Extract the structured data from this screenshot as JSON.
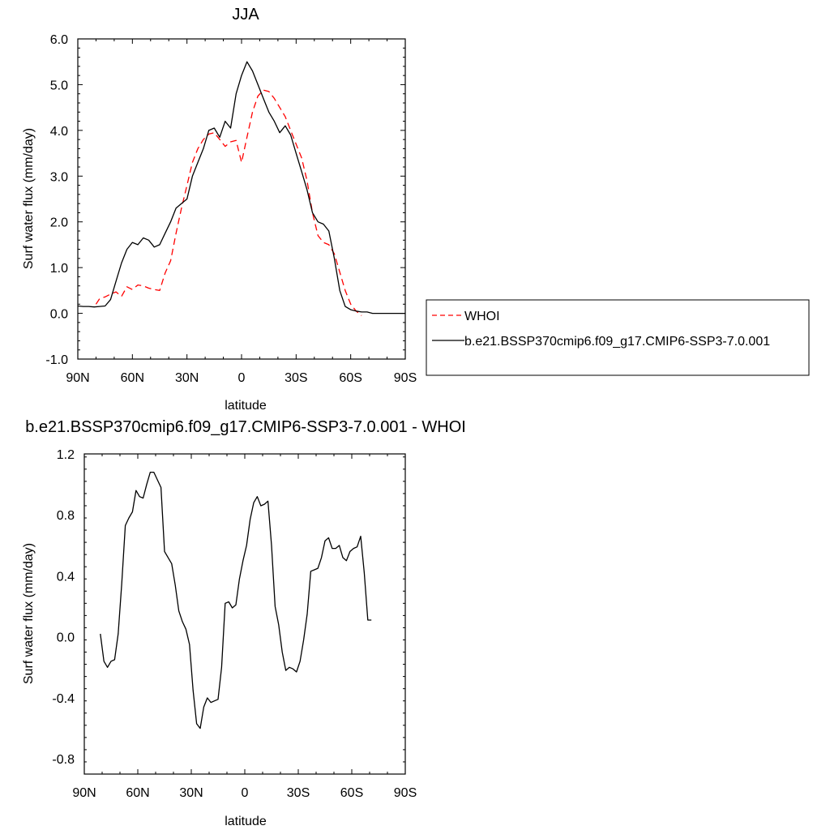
{
  "chart_data": [
    {
      "type": "line",
      "title": "JJA",
      "xlabel": "latitude",
      "ylabel": "Surf water flux (mm/day)",
      "xlim": [
        90,
        -90
      ],
      "ylim": [
        -1.0,
        6.0
      ],
      "xticks": [
        90,
        60,
        30,
        0,
        -30,
        -60,
        -90
      ],
      "xtick_labels": [
        "90N",
        "60N",
        "30N",
        "0",
        "30S",
        "60S",
        "90S"
      ],
      "yticks": [
        -1.0,
        0.0,
        1.0,
        2.0,
        3.0,
        4.0,
        5.0,
        6.0
      ],
      "ytick_labels": [
        "-1.0",
        "0.0",
        "1.0",
        "2.0",
        "3.0",
        "4.0",
        "5.0",
        "6.0"
      ],
      "legend_position": "right",
      "series": [
        {
          "name": "WHOI",
          "color": "#ff0000",
          "dash": "dashed",
          "x": [
            80,
            78,
            75,
            72,
            69,
            66,
            63,
            60,
            57,
            54,
            51,
            48,
            45,
            42,
            39,
            36,
            33,
            30,
            27,
            24,
            21,
            18,
            15,
            12,
            9,
            6,
            3,
            0,
            -3,
            -6,
            -9,
            -12,
            -15,
            -18,
            -21,
            -24,
            -27,
            -30,
            -33,
            -36,
            -39,
            -42,
            -45,
            -48,
            -51,
            -54,
            -57,
            -60,
            -63,
            -66,
            -69,
            -72
          ],
          "y": [
            0.2,
            0.32,
            0.36,
            0.42,
            0.47,
            0.37,
            0.58,
            0.52,
            0.62,
            0.6,
            0.55,
            0.52,
            0.5,
            0.88,
            1.15,
            1.75,
            2.3,
            2.8,
            3.3,
            3.6,
            3.8,
            3.92,
            3.95,
            3.8,
            3.65,
            3.75,
            3.78,
            3.3,
            3.85,
            4.4,
            4.75,
            4.88,
            4.85,
            4.7,
            4.5,
            4.3,
            4.0,
            3.7,
            3.4,
            2.9,
            2.2,
            1.7,
            1.55,
            1.5,
            1.3,
            0.9,
            0.5,
            0.2,
            0.05,
            -0.05,
            null,
            null
          ]
        },
        {
          "name": "b.e21.BSSP370cmip6.f09_g17.CMIP6-SSP3-7.0.001",
          "color": "#000000",
          "dash": "solid",
          "x": [
            90,
            87,
            84,
            81,
            78,
            75,
            72,
            69,
            66,
            63,
            60,
            57,
            54,
            51,
            48,
            45,
            42,
            39,
            36,
            33,
            30,
            27,
            24,
            21,
            18,
            15,
            12,
            9,
            6,
            3,
            0,
            -3,
            -6,
            -9,
            -12,
            -15,
            -18,
            -21,
            -24,
            -27,
            -30,
            -33,
            -36,
            -39,
            -42,
            -45,
            -48,
            -51,
            -54,
            -57,
            -60,
            -63,
            -66,
            -69,
            -72,
            -75,
            -78,
            -81,
            -84,
            -87,
            -90
          ],
          "y": [
            0.16,
            0.15,
            0.15,
            0.14,
            0.15,
            0.16,
            0.3,
            0.7,
            1.1,
            1.4,
            1.55,
            1.5,
            1.65,
            1.6,
            1.45,
            1.5,
            1.75,
            2.0,
            2.3,
            2.4,
            2.5,
            3.0,
            3.3,
            3.6,
            4.0,
            4.05,
            3.85,
            4.2,
            4.05,
            4.8,
            5.2,
            5.5,
            5.3,
            5.0,
            4.7,
            4.4,
            4.2,
            3.95,
            4.1,
            3.9,
            3.5,
            3.1,
            2.7,
            2.2,
            2.0,
            1.95,
            1.8,
            1.2,
            0.5,
            0.15,
            0.08,
            0.05,
            0.03,
            0.03,
            0.0,
            0.0,
            0.0,
            0.0,
            0.0,
            0.0,
            0.0
          ]
        }
      ]
    },
    {
      "type": "line",
      "title": "b.e21.BSSP370cmip6.f09_g17.CMIP6-SSP3-7.0.001 - WHOI",
      "xlabel": "latitude",
      "ylabel": "Surf water flux (mm/day)",
      "xlim": [
        90,
        -90
      ],
      "ylim": [
        -0.9,
        1.2
      ],
      "xticks": [
        90,
        60,
        30,
        0,
        -30,
        -60,
        -90
      ],
      "xtick_labels": [
        "90N",
        "60N",
        "30N",
        "0",
        "30S",
        "60S",
        "90S"
      ],
      "yticks": [
        -0.8,
        -0.4,
        0.0,
        0.4,
        0.8,
        1.2
      ],
      "ytick_labels": [
        "-0.8",
        "-0.4",
        "0.0",
        "0.4",
        "0.8",
        "1.2"
      ],
      "series": [
        {
          "color": "#000000",
          "dash": "solid",
          "x": [
            81,
            79,
            77,
            75,
            73,
            71,
            69,
            67,
            65,
            63,
            61,
            59,
            57,
            55,
            53,
            51,
            49,
            47,
            45,
            43,
            41,
            39,
            37,
            35,
            33,
            31,
            29,
            27,
            25,
            23,
            21,
            19,
            17,
            15,
            13,
            11,
            9,
            7,
            5,
            3,
            1,
            -1,
            -3,
            -5,
            -7,
            -9,
            -11,
            -13,
            -15,
            -17,
            -19,
            -21,
            -23,
            -25,
            -27,
            -29,
            -31,
            -33,
            -35,
            -37,
            -39,
            -41,
            -43,
            -45,
            -47,
            -49,
            -51,
            -53,
            -55,
            -57,
            -59,
            -61,
            -63,
            -65,
            -67,
            -69,
            -71
          ],
          "y": [
            0.02,
            -0.16,
            -0.2,
            -0.16,
            -0.15,
            0.02,
            0.35,
            0.73,
            0.78,
            0.82,
            0.96,
            0.92,
            0.91,
            1.0,
            1.08,
            1.08,
            1.03,
            0.98,
            0.56,
            0.52,
            0.48,
            0.34,
            0.17,
            0.1,
            0.05,
            -0.05,
            -0.35,
            -0.57,
            -0.6,
            -0.46,
            -0.4,
            -0.43,
            -0.42,
            -0.41,
            -0.2,
            0.22,
            0.23,
            0.19,
            0.21,
            0.38,
            0.5,
            0.6,
            0.77,
            0.88,
            0.92,
            0.86,
            0.87,
            0.89,
            0.6,
            0.2,
            0.08,
            -0.1,
            -0.22,
            -0.2,
            -0.21,
            -0.23,
            -0.16,
            -0.02,
            0.15,
            0.43,
            0.44,
            0.45,
            0.52,
            0.63,
            0.65,
            0.58,
            0.58,
            0.6,
            0.52,
            0.5,
            0.56,
            0.58,
            0.59,
            0.66,
            0.42,
            0.11,
            0.11
          ]
        }
      ]
    }
  ]
}
